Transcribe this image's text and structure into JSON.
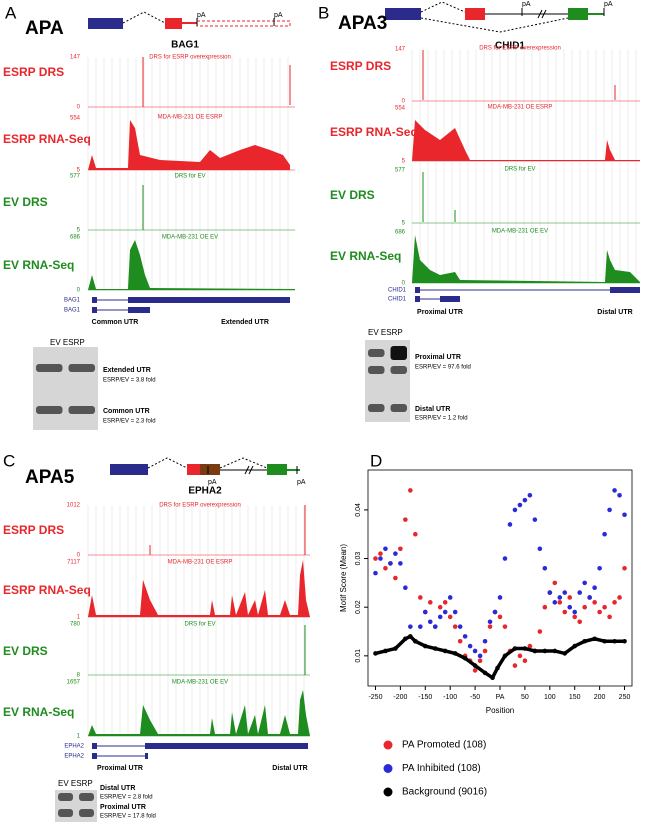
{
  "panels": {
    "a": {
      "letter": "A",
      "title": "APA",
      "gene": "BAG1",
      "tracks": [
        "ESRP DRS",
        "ESRP RNA-Seq",
        "EV DRS",
        "EV RNA-Seq"
      ],
      "track_scales": [
        "147",
        "0",
        "554",
        "5",
        "577",
        "5",
        "686",
        "0"
      ],
      "track_captions": [
        "DRS for ESRP overexpression",
        "MDA-MB-231 OE ESRP",
        "DRS for EV",
        "MDA-MB-231 OE EV"
      ],
      "isoforms": [
        "BAG1",
        "BAG1"
      ],
      "utr_labels": [
        "Common UTR",
        "Extended UTR"
      ],
      "pa_marks": [
        "pA",
        "pA"
      ],
      "gel_lanes": "EV ESRP",
      "bands": [
        {
          "name": "Extended UTR",
          "fold": "ESRP/EV = 3.8 fold"
        },
        {
          "name": "Common UTR",
          "fold": "ESRP/EV = 2.3 fold"
        }
      ]
    },
    "b": {
      "letter": "B",
      "title": "APA3",
      "gene": "CHID1",
      "tracks": [
        "ESRP DRS",
        "ESRP RNA-Seq",
        "EV DRS",
        "EV RNA-Seq"
      ],
      "track_scales": [
        "147",
        "0",
        "554",
        "5",
        "577",
        "5",
        "686",
        "0"
      ],
      "track_captions": [
        "DRS for ESRP overexpression",
        "MDA-MB-231 OE ESRP",
        "DRS for EV",
        "MDA-MB-231 OE EV"
      ],
      "isoforms": [
        "CHID1",
        "CHID1"
      ],
      "utr_labels": [
        "Proximal UTR",
        "Distal UTR"
      ],
      "pa_marks": [
        "pA",
        "pA"
      ],
      "gel_lanes": "EV ESRP",
      "bands": [
        {
          "name": "Proximal UTR",
          "fold": "ESRP/EV = 97.6 fold"
        },
        {
          "name": "Distal UTR",
          "fold": "ESRP/EV = 1.2 fold"
        }
      ]
    },
    "c": {
      "letter": "C",
      "title": "APA5",
      "gene": "EPHA2",
      "tracks": [
        "ESRP DRS",
        "ESRP RNA-Seq",
        "EV DRS",
        "EV RNA-Seq"
      ],
      "track_scales": [
        "1012",
        "0",
        "7117",
        "1",
        "780",
        "8",
        "1657",
        "1"
      ],
      "track_captions": [
        "DRS for ESRP overexpression",
        "MDA-MB-231 OE ESRP",
        "DRS for EV",
        "MDA-MB-231 OE EV"
      ],
      "isoforms": [
        "EPHA2",
        "EPHA2"
      ],
      "utr_labels": [
        "Proximal UTR",
        "Distal UTR"
      ],
      "pa_marks": [
        "pA",
        "pA"
      ],
      "gel_lanes": "EV ESRP",
      "bands": [
        {
          "name": "Distal UTR",
          "fold": "ESRP/EV = 2.8 fold"
        },
        {
          "name": "Proximal UTR",
          "fold": "ESRP/EV = 17.8 fold"
        }
      ]
    }
  },
  "chart_data": {
    "type": "scatter",
    "letter": "D",
    "xlabel": "Position",
    "ylabel": "Motif Score (Mean)",
    "xlim": [
      -265,
      265
    ],
    "ylim": [
      0.0038,
      0.0482
    ],
    "xticks": [
      -250,
      -200,
      -150,
      -100,
      -50,
      {
        "value": 0,
        "label": "PA"
      },
      50,
      100,
      150,
      200,
      250
    ],
    "yticks": [
      0.01,
      0.02,
      0.03,
      0.04
    ],
    "series": [
      {
        "name": "PA Promoted (108)",
        "color": "#e8262b",
        "x": [
          -250,
          -240,
          -230,
          -220,
          -210,
          -200,
          -190,
          -180,
          -170,
          -160,
          -150,
          -140,
          -130,
          -120,
          -110,
          -100,
          -90,
          -80,
          -70,
          -60,
          -50,
          -40,
          -30,
          -20,
          -10,
          0,
          10,
          20,
          30,
          40,
          50,
          60,
          70,
          80,
          90,
          100,
          110,
          120,
          130,
          140,
          150,
          160,
          170,
          180,
          190,
          200,
          210,
          220,
          230,
          240,
          250
        ],
        "values": [
          0.03,
          0.031,
          0.028,
          0.029,
          0.026,
          0.032,
          0.038,
          0.044,
          0.035,
          0.022,
          0.019,
          0.021,
          0.016,
          0.02,
          0.021,
          0.018,
          0.016,
          0.013,
          0.01,
          0.009,
          0.007,
          0.009,
          0.011,
          0.016,
          0.019,
          0.018,
          0.016,
          0.011,
          0.008,
          0.01,
          0.009,
          0.012,
          0.011,
          0.015,
          0.02,
          0.023,
          0.025,
          0.021,
          0.019,
          0.022,
          0.018,
          0.017,
          0.02,
          0.022,
          0.021,
          0.019,
          0.02,
          0.018,
          0.021,
          0.022,
          0.028
        ]
      },
      {
        "name": "PA Inhibited (108)",
        "color": "#2a2ad8",
        "x": [
          -250,
          -240,
          -230,
          -220,
          -210,
          -200,
          -190,
          -180,
          -170,
          -160,
          -150,
          -140,
          -130,
          -120,
          -110,
          -100,
          -90,
          -80,
          -70,
          -60,
          -50,
          -40,
          -30,
          -20,
          -10,
          0,
          10,
          20,
          30,
          40,
          50,
          60,
          70,
          80,
          90,
          100,
          110,
          120,
          130,
          140,
          150,
          160,
          170,
          180,
          190,
          200,
          210,
          220,
          230,
          240,
          250
        ],
        "values": [
          0.027,
          0.03,
          0.032,
          0.029,
          0.031,
          0.029,
          0.024,
          0.016,
          0.013,
          0.016,
          0.019,
          0.017,
          0.016,
          0.018,
          0.019,
          0.022,
          0.019,
          0.016,
          0.014,
          0.012,
          0.011,
          0.01,
          0.013,
          0.017,
          0.019,
          0.022,
          0.03,
          0.037,
          0.04,
          0.041,
          0.042,
          0.043,
          0.038,
          0.032,
          0.028,
          0.023,
          0.021,
          0.022,
          0.023,
          0.02,
          0.019,
          0.023,
          0.025,
          0.022,
          0.024,
          0.028,
          0.035,
          0.04,
          0.044,
          0.043,
          0.039
        ]
      },
      {
        "name": "Background (9016)",
        "color": "#000000",
        "line": true,
        "x": [
          -250,
          -230,
          -210,
          -190,
          -180,
          -170,
          -150,
          -130,
          -110,
          -90,
          -70,
          -50,
          -30,
          -15,
          -5,
          10,
          30,
          50,
          70,
          90,
          110,
          130,
          150,
          170,
          190,
          210,
          230,
          250
        ],
        "values": [
          0.0105,
          0.011,
          0.0115,
          0.0135,
          0.014,
          0.013,
          0.012,
          0.0115,
          0.011,
          0.0105,
          0.0095,
          0.008,
          0.0065,
          0.0055,
          0.0075,
          0.01,
          0.0115,
          0.0115,
          0.011,
          0.011,
          0.011,
          0.0105,
          0.012,
          0.013,
          0.0135,
          0.013,
          0.013,
          0.013
        ]
      }
    ]
  }
}
